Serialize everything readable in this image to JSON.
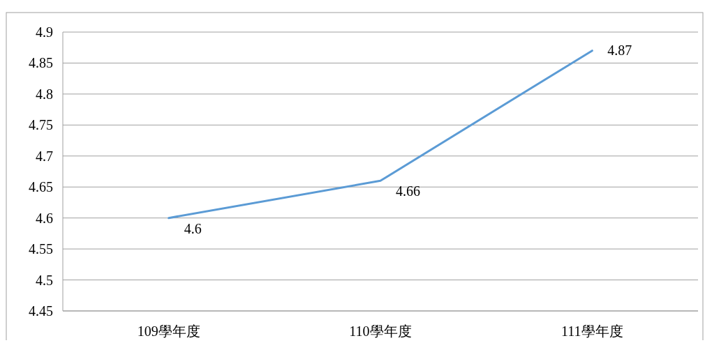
{
  "chart_data": {
    "type": "line",
    "categories": [
      "109學年度",
      "110學年度",
      "111學年度"
    ],
    "series": [
      {
        "color": "#5b9bd5",
        "values": [
          4.6,
          4.66,
          4.87
        ]
      }
    ],
    "ylim": [
      4.45,
      4.9
    ],
    "yticks": [
      4.45,
      4.5,
      4.55,
      4.6,
      4.65,
      4.7,
      4.75,
      4.8,
      4.85,
      4.9
    ],
    "grid": "y",
    "data_labels": true,
    "marker": "none",
    "line_style": "solid"
  }
}
